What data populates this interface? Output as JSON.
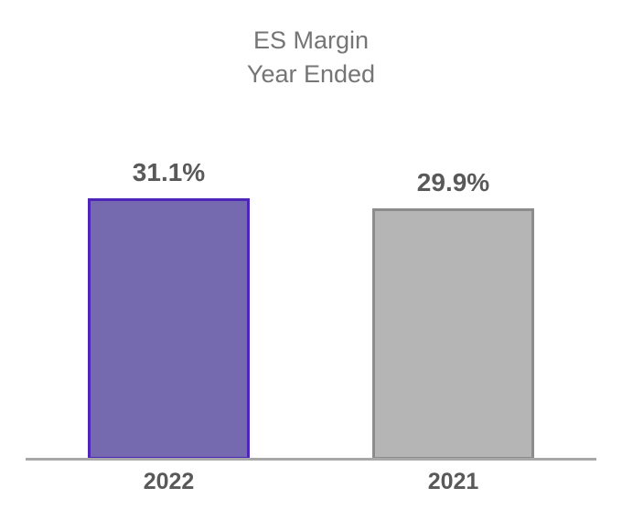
{
  "chart": {
    "title_line1": "ES Margin",
    "title_line2": "Year Ended"
  },
  "chart_data": {
    "type": "bar",
    "title": "ES Margin Year Ended",
    "categories": [
      "2022",
      "2021"
    ],
    "values": [
      31.1,
      29.9
    ],
    "data_labels": [
      "31.1%",
      "29.9%"
    ],
    "series": [
      {
        "name": "2022",
        "value": 31.1,
        "label": "31.1%",
        "fill": "#7569B0",
        "border": "#4E25B8"
      },
      {
        "name": "2021",
        "value": 29.9,
        "label": "29.9%",
        "fill": "#B5B5B5",
        "border": "#8C8C8C"
      }
    ],
    "ylabel": "",
    "xlabel": "",
    "ylim": [
      0,
      33
    ],
    "grid": false,
    "legend": "none",
    "axis_line_color": "#A8A8A8",
    "title_color": "#757575",
    "label_color": "#595959"
  }
}
